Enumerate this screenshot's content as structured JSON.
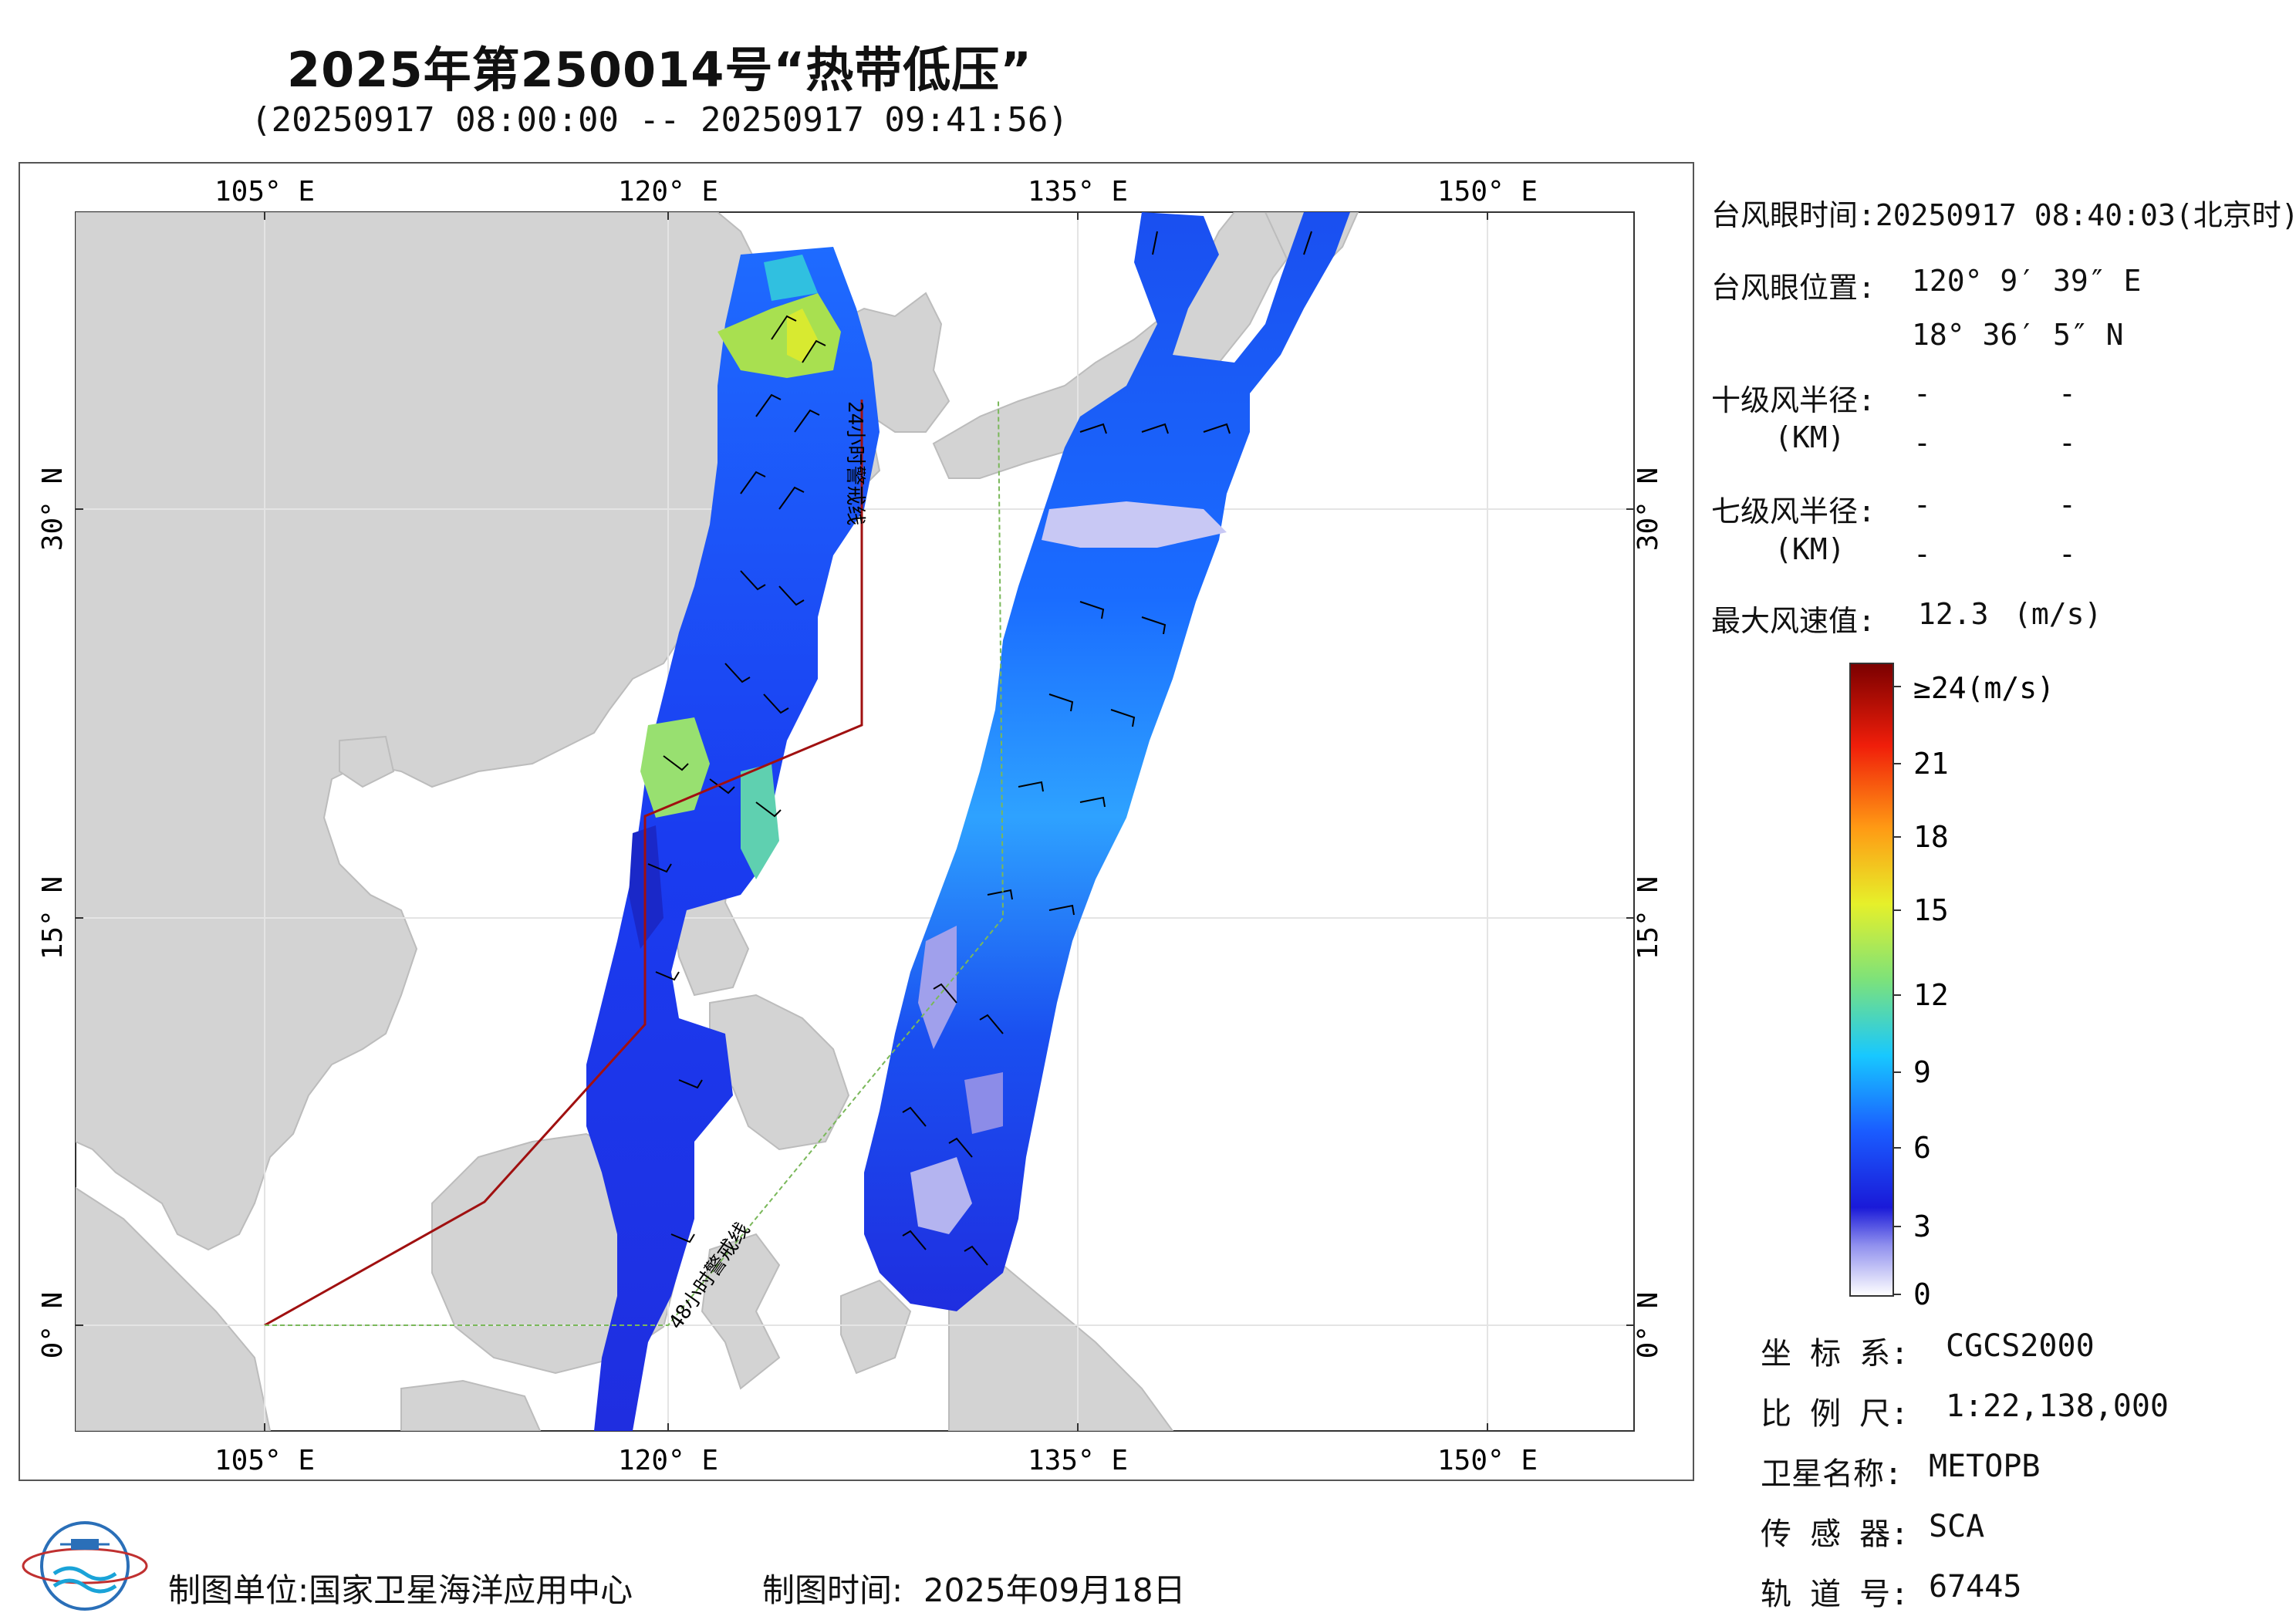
{
  "header": {
    "title": "2025年第250014号“热带低压”",
    "subtitle": "(20250917 08:00:00 -- 20250917 09:41:56)"
  },
  "map": {
    "lon_ticks_top": [
      "105° E",
      "120° E",
      "135° E",
      "150° E"
    ],
    "lon_ticks_bottom": [
      "105° E",
      "120° E",
      "135° E",
      "150° E"
    ],
    "lat_ticks_left": [
      "30° N",
      "15° N",
      "0° N"
    ],
    "lat_ticks_right": [
      "30° N",
      "15° N",
      "0° N"
    ],
    "warning_line_24h": "24小时警戒线",
    "warning_line_48h": "48小时警戒线",
    "land_color": "#d3d3d3",
    "sea_color": "#ffffff"
  },
  "info": {
    "eye_time_label": "台风眼时间:",
    "eye_time_value": "20250917 08:40:03(北京时)",
    "eye_pos_label": "台风眼位置:",
    "eye_lon": "120° 9′ 39″ E",
    "eye_lat": "18° 36′ 5″ N",
    "r10_label": "十级风半径:",
    "r10_unit": "(KM)",
    "r10_v1": "-",
    "r10_v2": "-",
    "r10_v3": "-",
    "r10_v4": "-",
    "r7_label": "七级风半径:",
    "r7_unit": "(KM)",
    "r7_v1": "-",
    "r7_v2": "-",
    "r7_v3": "-",
    "r7_v4": "-",
    "max_wind_label": "最大风速值:",
    "max_wind_value": "12.3",
    "max_wind_unit": "(m/s)"
  },
  "colorbar": {
    "labels": [
      "≥24(m/s)",
      "21",
      "18",
      "15",
      "12",
      "9",
      "6",
      "3",
      "0"
    ],
    "values": [
      24,
      21,
      18,
      15,
      12,
      9,
      6,
      3,
      0
    ]
  },
  "meta": {
    "crs_label": "坐 标 系:",
    "crs_value": "CGCS2000",
    "scale_label": "比 例 尺:",
    "scale_value": "1:22,138,000",
    "sat_label": "卫星名称:",
    "sat_value": "METOPB",
    "sensor_label": "传 感 器:",
    "sensor_value": "SCA",
    "orbit_label": "轨 道 号:",
    "orbit_value": "67445"
  },
  "footer": {
    "unit_label": "制图单位:",
    "unit_value": "国家卫星海洋应用中心",
    "time_label": "制图时间:",
    "time_value": "2025年09月18日"
  },
  "logo": {
    "icon": "nsoas-logo-icon"
  }
}
